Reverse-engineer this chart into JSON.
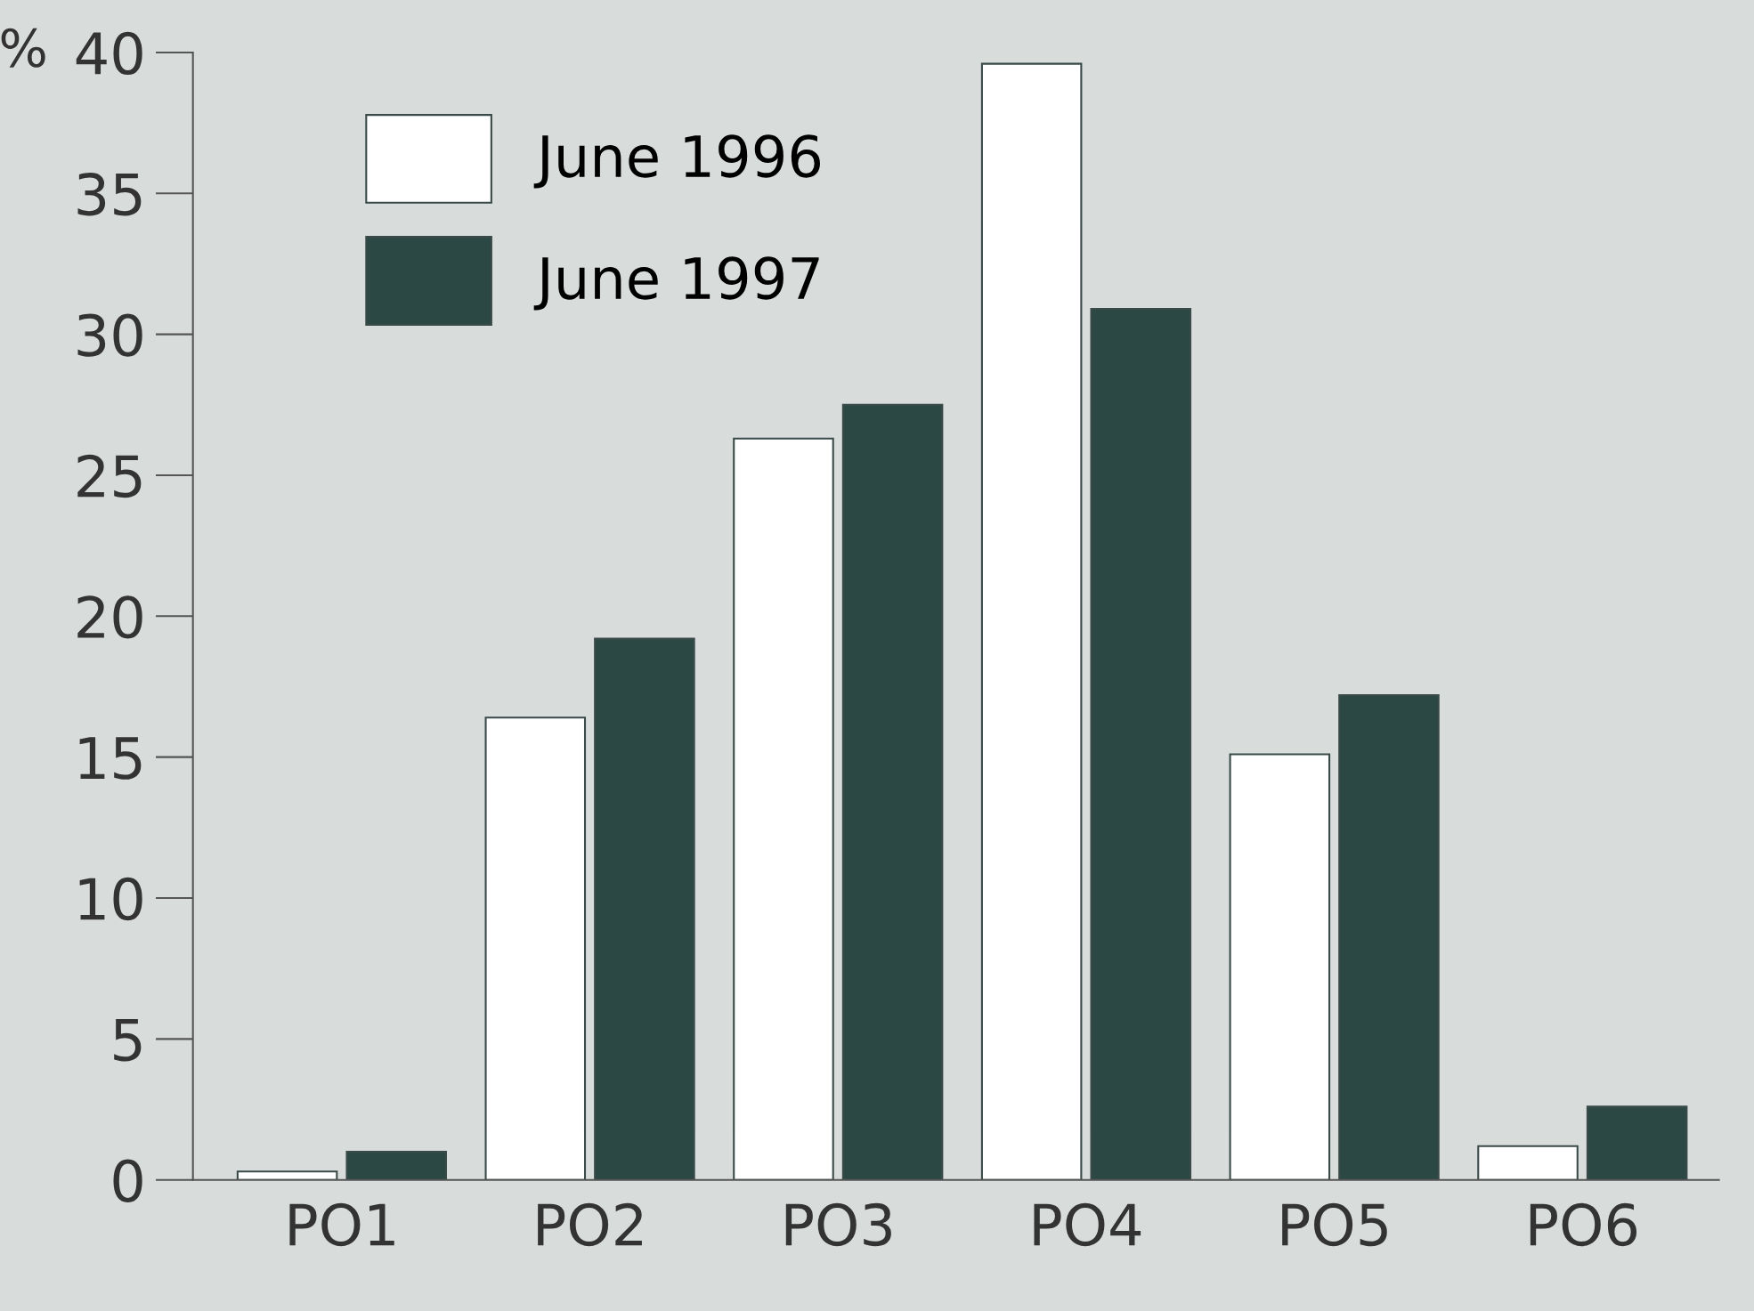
{
  "chart_data": {
    "type": "bar",
    "ylabel": "%",
    "categories": [
      "PO1",
      "PO2",
      "PO3",
      "PO4",
      "PO5",
      "PO6"
    ],
    "series": [
      {
        "name": "June 1996",
        "color": "#ffffff",
        "values": [
          0.3,
          16.4,
          26.3,
          39.6,
          15.1,
          1.2
        ]
      },
      {
        "name": "June 1997",
        "color": "#2b4844",
        "values": [
          1.0,
          19.2,
          27.5,
          30.9,
          17.2,
          2.6
        ]
      }
    ],
    "ylim": [
      0,
      40
    ],
    "yticks": [
      0,
      5,
      10,
      15,
      20,
      25,
      30,
      35,
      40
    ],
    "grid": false,
    "legend": "top left"
  }
}
